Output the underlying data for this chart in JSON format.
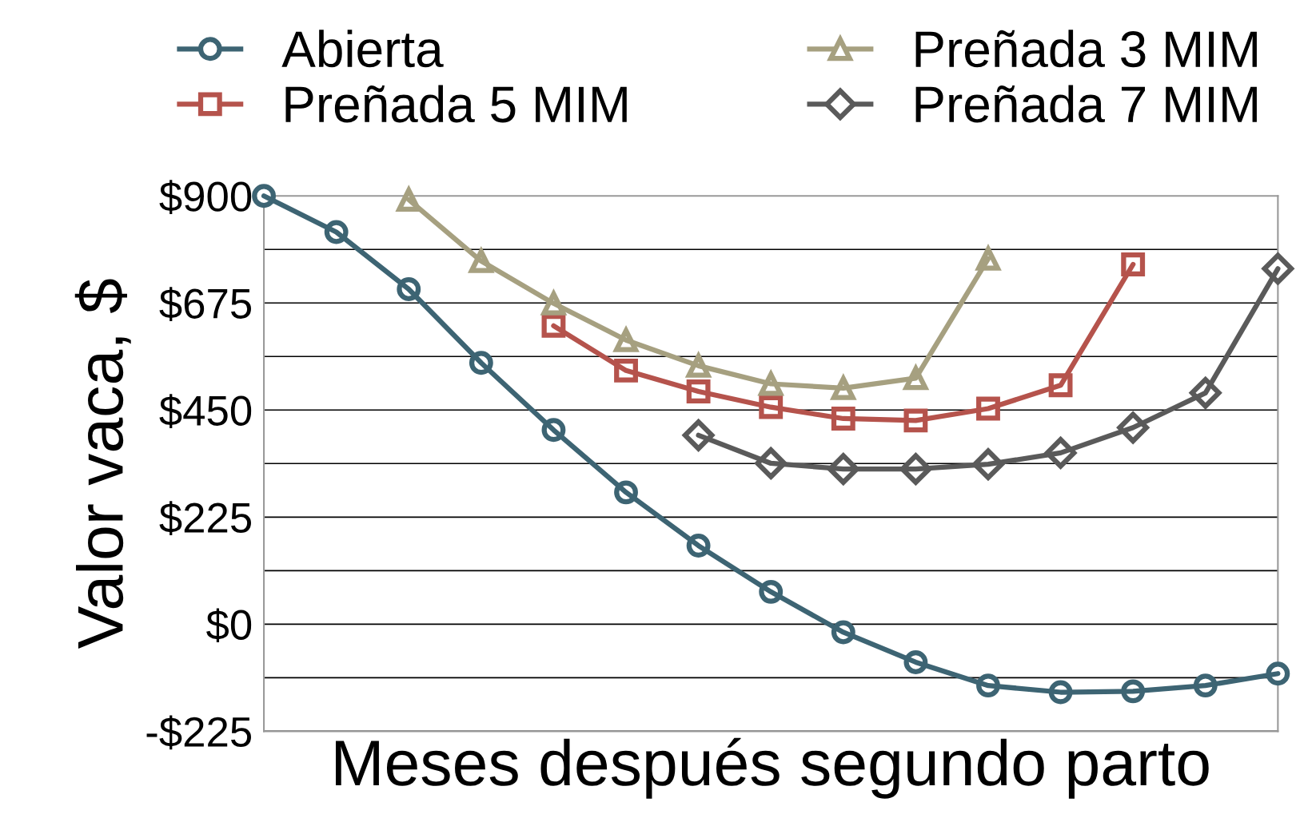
{
  "chart_data": {
    "type": "line",
    "xlabel": "Meses después segundo parto",
    "ylabel": "Valor vaca, $",
    "categories": [
      null,
      null,
      null,
      null,
      null,
      null,
      null,
      null,
      null,
      null,
      null,
      null,
      null,
      null,
      null
    ],
    "series": [
      {
        "name": "Abierta",
        "color": "#3d6473",
        "marker": "circle",
        "values": [
          900,
          824,
          704,
          549,
          408,
          277,
          165,
          68,
          -17,
          -80,
          -129,
          -143,
          -141,
          -129,
          -104
        ]
      },
      {
        "name": "Preñada 5 MIM",
        "color": "#b5534c",
        "marker": "square",
        "values": [
          null,
          null,
          null,
          null,
          627,
          533,
          489,
          456,
          432,
          428,
          453,
          502,
          756,
          null,
          null
        ]
      },
      {
        "name": "Preñada 3 MIM",
        "color": "#a6a080",
        "marker": "triangle",
        "values": [
          null,
          null,
          892,
          763,
          674,
          597,
          543,
          505,
          496,
          517,
          768,
          null,
          null,
          null,
          null
        ]
      },
      {
        "name": "Preñada 7 MIM",
        "color": "#5a5a5a",
        "marker": "diamond",
        "values": [
          null,
          null,
          null,
          null,
          null,
          null,
          397,
          338,
          326,
          326,
          336,
          360,
          413,
          486,
          747
        ]
      }
    ],
    "ylim": [
      -225,
      900
    ],
    "yticks": [
      {
        "value": -225,
        "label": "-$225"
      },
      {
        "value": -112.5,
        "label": null
      },
      {
        "value": 0,
        "label": "$0"
      },
      {
        "value": 112.5,
        "label": null
      },
      {
        "value": 225,
        "label": "$225"
      },
      {
        "value": 337.5,
        "label": null
      },
      {
        "value": 450,
        "label": "$450"
      },
      {
        "value": 562.5,
        "label": null
      },
      {
        "value": 675,
        "label": "$675"
      },
      {
        "value": 787.5,
        "label": null
      },
      {
        "value": 900,
        "label": "$900"
      }
    ],
    "grid": "y",
    "legend": "top",
    "tick_labels": "y",
    "line_style": "solid"
  }
}
